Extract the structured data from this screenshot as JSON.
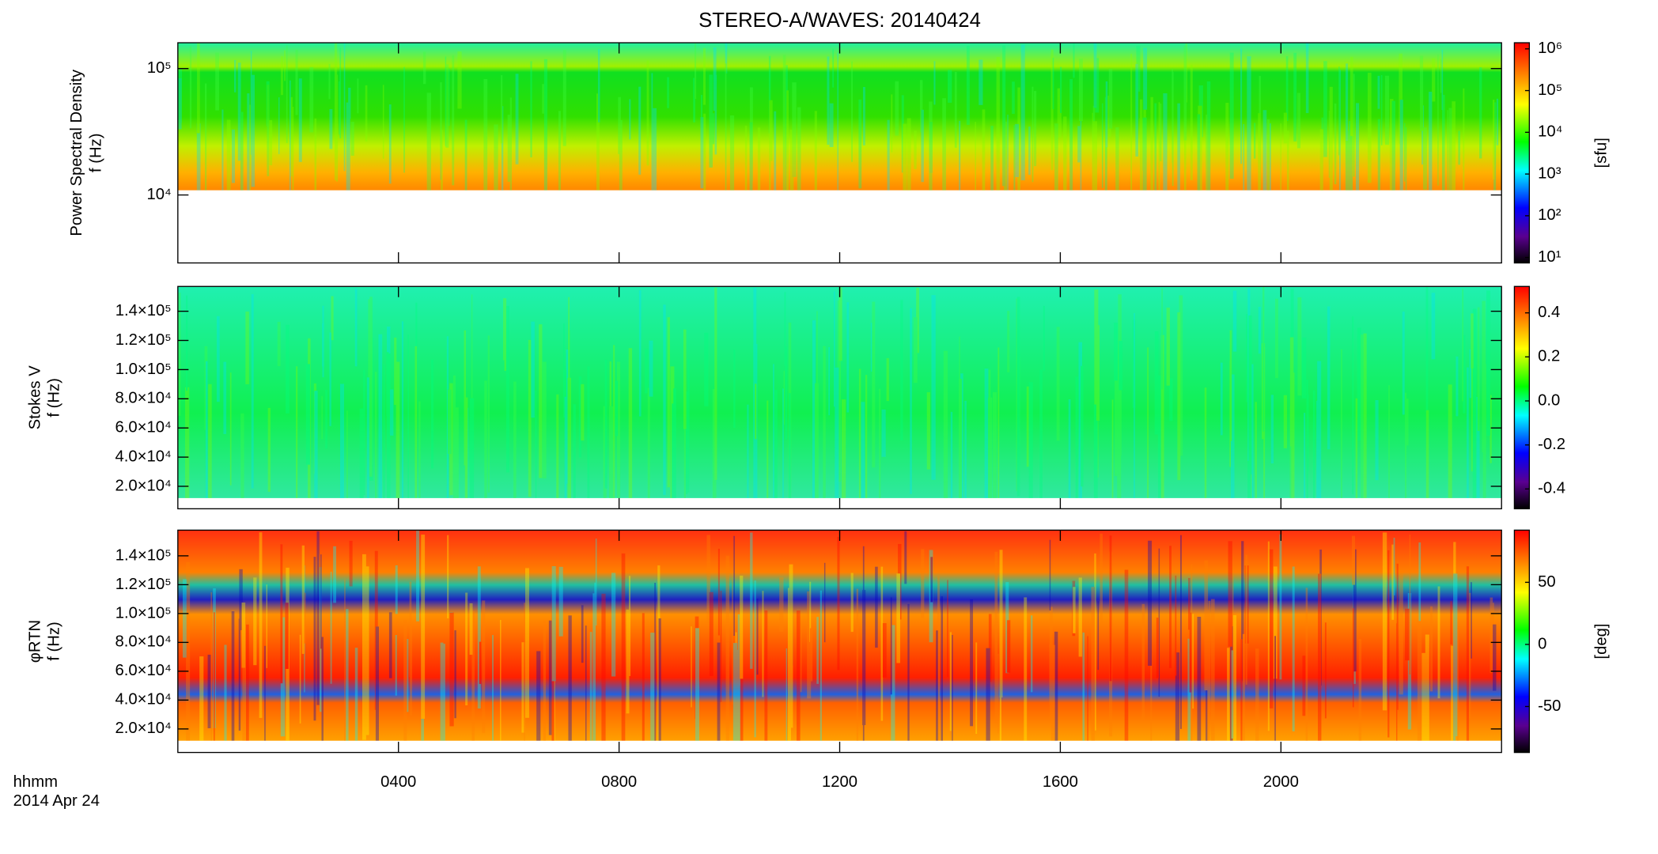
{
  "title": "STEREO-A/WAVES: 20140424",
  "x_axis": {
    "lim": [
      0,
      24
    ],
    "ticks": [
      {
        "value": 4,
        "label": "0400"
      },
      {
        "value": 8,
        "label": "0800"
      },
      {
        "value": 12,
        "label": "1200"
      },
      {
        "value": 16,
        "label": "1600"
      },
      {
        "value": 20,
        "label": "2000"
      }
    ],
    "label": "hhmm",
    "date": "2014 Apr 24"
  },
  "chart_data": [
    {
      "type": "spectrogram",
      "ylabel": [
        "Power Spectral Density",
        "f (Hz)"
      ],
      "log_y": true,
      "ylim": [
        2900,
        160000
      ],
      "yticks": [
        {
          "value": 10000,
          "label": "10⁴"
        },
        {
          "value": 100000,
          "label": "10⁵"
        }
      ],
      "colorbar": {
        "label": "[sfu]",
        "log": true,
        "lim": [
          7.4,
          1400000
        ],
        "ticks": [
          {
            "value": 10,
            "label": "10¹"
          },
          {
            "value": 100,
            "label": "10²"
          },
          {
            "value": 1000,
            "label": "10³"
          },
          {
            "value": 10000,
            "label": "10⁴"
          },
          {
            "value": 100000,
            "label": "10⁵"
          },
          {
            "value": 1000000,
            "label": "10⁶"
          }
        ]
      }
    },
    {
      "type": "spectrogram",
      "ylabel": [
        "Stokes V",
        "f (Hz)"
      ],
      "log_y": false,
      "ylim": [
        4600,
        157000
      ],
      "yticks": [
        {
          "value": 20000,
          "label": "2.0×10⁴"
        },
        {
          "value": 40000,
          "label": "4.0×10⁴"
        },
        {
          "value": 60000,
          "label": "6.0×10⁴"
        },
        {
          "value": 80000,
          "label": "8.0×10⁴"
        },
        {
          "value": 100000,
          "label": "1.0×10⁵"
        },
        {
          "value": 120000,
          "label": "1.2×10⁵"
        },
        {
          "value": 140000,
          "label": "1.4×10⁵"
        }
      ],
      "colorbar": {
        "label": "",
        "log": false,
        "lim": [
          -0.49,
          0.52
        ],
        "ticks": [
          {
            "value": -0.4,
            "label": "-0.4"
          },
          {
            "value": -0.2,
            "label": "-0.2"
          },
          {
            "value": 0,
            "label": "0.0"
          },
          {
            "value": 0.2,
            "label": "0.2"
          },
          {
            "value": 0.4,
            "label": "0.4"
          }
        ]
      }
    },
    {
      "type": "spectrogram",
      "ylabel": [
        "φRTN",
        "f (Hz)"
      ],
      "log_y": false,
      "ylim": [
        3700,
        157800
      ],
      "yticks": [
        {
          "value": 20000,
          "label": "2.0×10⁴"
        },
        {
          "value": 40000,
          "label": "4.0×10⁴"
        },
        {
          "value": 60000,
          "label": "6.0×10⁴"
        },
        {
          "value": 80000,
          "label": "8.0×10⁴"
        },
        {
          "value": 100000,
          "label": "1.0×10⁵"
        },
        {
          "value": 120000,
          "label": "1.2×10⁵"
        },
        {
          "value": 140000,
          "label": "1.4×10⁵"
        }
      ],
      "colorbar": {
        "label": "[deg]",
        "log": false,
        "lim": [
          -87,
          92
        ],
        "ticks": [
          -50,
          0,
          50
        ]
      }
    }
  ]
}
